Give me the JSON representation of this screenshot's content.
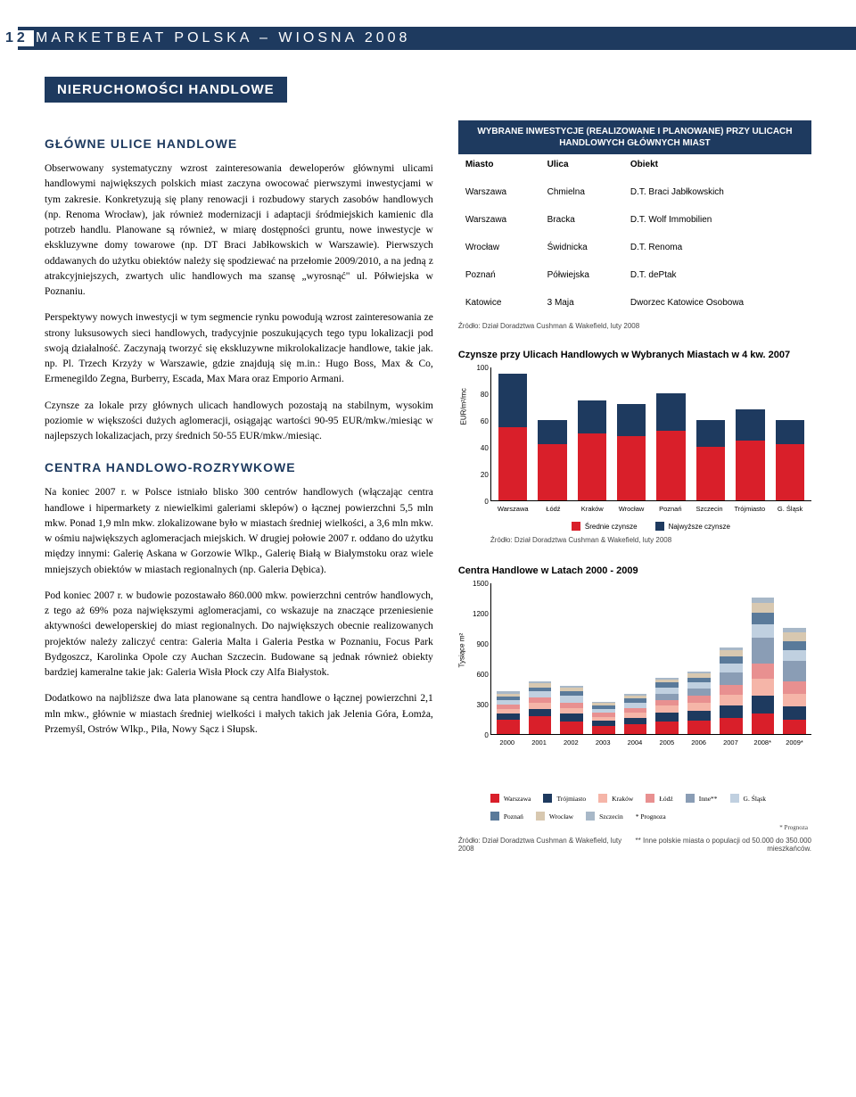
{
  "page_number": "12",
  "header": "MARKETBEAT POLSKA – WIOSNA 2008",
  "section_title": "NIERUCHOMOŚCI HANDLOWE",
  "subsec1": "GŁÓWNE ULICE HANDLOWE",
  "p1": "Obserwowany systematyczny wzrost zainteresowania deweloperów głównymi ulicami handlowymi największych polskich miast zaczyna owocować pierwszymi inwestycjami w tym zakresie. Konkretyzują się plany renowacji i rozbudowy starych zasobów handlowych (np. Renoma Wrocław), jak również modernizacji i adaptacji śródmiejskich kamienic dla potrzeb handlu. Planowane są również, w miarę dostępności gruntu, nowe inwestycje w ekskluzywne domy towarowe (np. DT Braci Jabłkowskich w Warszawie). Pierwszych oddawanych do użytku obiektów należy się spodziewać na przełomie 2009/2010, a na jedną z atrakcyjniejszych, zwartych ulic handlowych ma szansę „wyrosnąć\" ul. Półwiejska w Poznaniu.",
  "p2": "Perspektywy nowych inwestycji w tym segmencie rynku powodują wzrost zainteresowania ze strony luksusowych sieci handlowych, tradycyjnie poszukujących tego typu lokalizacji pod swoją działalność. Zaczynają tworzyć się ekskluzywne mikrolokalizacje handlowe, takie jak. np. Pl. Trzech Krzyży w Warszawie, gdzie znajdują się m.in.: Hugo Boss, Max & Co, Ermenegildo Zegna, Burberry, Escada, Max Mara oraz Emporio Armani.",
  "p3": "Czynsze za lokale przy głównych ulicach handlowych pozostają na stabilnym, wysokim poziomie w większości dużych aglomeracji, osiągając wartości 90-95 EUR/mkw./miesiąc w najlepszych lokalizacjach, przy średnich 50-55 EUR/mkw./miesiąc.",
  "subsec2": "CENTRA HANDLOWO-ROZRYWKOWE",
  "p4": "Na koniec 2007 r. w Polsce istniało blisko 300 centrów handlowych (włączając centra handlowe i hipermarkety z niewielkimi galeriami sklepów) o łącznej powierzchni 5,5 mln mkw. Ponad 1,9 mln mkw. zlokalizowane było w miastach średniej wielkości, a 3,6 mln mkw. w ośmiu największych aglomeracjach miejskich. W drugiej połowie 2007 r. oddano do użytku między innymi: Galerię Askana w Gorzowie Wlkp., Galerię Białą w Białymstoku oraz wiele mniejszych obiektów w miastach regionalnych (np. Galeria Dębica).",
  "p5": "Pod koniec 2007 r. w budowie pozostawało 860.000 mkw. powierzchni centrów handlowych, z tego aż 69% poza największymi aglomeracjami, co wskazuje na znaczące przeniesienie aktywności deweloperskiej do miast regionalnych. Do największych obecnie realizowanych projektów należy zaliczyć centra: Galeria Malta i Galeria Pestka w Poznaniu, Focus Park Bydgoszcz, Karolinka Opole czy Auchan Szczecin. Budowane są jednak również obiekty bardziej kameralne takie jak: Galeria Wisła Płock czy Alfa Białystok.",
  "p6": "Dodatkowo na najbliższe dwa lata planowane są centra handlowe o łącznej powierzchni 2,1 mln mkw., głównie w miastach średniej wielkości i małych takich jak Jelenia Góra, Łomża, Przemyśl, Ostrów Wlkp., Piła, Nowy Sącz i Słupsk.",
  "inv_table": {
    "header": "WYBRANE INWESTYCJE (REALIZOWANE I PLANOWANE) PRZY ULICACH HANDLOWYCH GŁÓWNYCH MIAST",
    "cols": [
      "Miasto",
      "Ulica",
      "Obiekt"
    ],
    "rows": [
      [
        "Warszawa",
        "Chmielna",
        "D.T. Braci Jabłkowskich"
      ],
      [
        "Warszawa",
        "Bracka",
        "D.T. Wolf Immobilien"
      ],
      [
        "Wrocław",
        "Świdnicka",
        "D.T. Renoma"
      ],
      [
        "Poznań",
        "Półwiejska",
        "D.T. dePtak"
      ],
      [
        "Katowice",
        "3 Maja",
        "Dworzec Katowice Osobowa"
      ]
    ]
  },
  "source_text": "Źródło: Dział Doradztwa Cushman & Wakefield, luty 2008",
  "chart1": {
    "title": "Czynsze przy Ulicach Handlowych w Wybranych Miastach w 4 kw. 2007",
    "ylabel": "EUR/m²/mc",
    "ymax": 100,
    "ytick_step": 20,
    "cities": [
      "Warszawa",
      "Łódź",
      "Kraków",
      "Wrocław",
      "Poznań",
      "Szczecin",
      "Trójmiasto",
      "G. Śląsk"
    ],
    "srednie": [
      55,
      42,
      50,
      48,
      52,
      40,
      45,
      42
    ],
    "najwyzsze": [
      95,
      60,
      75,
      72,
      80,
      60,
      68,
      60
    ],
    "color_srednie": "#d91f2a",
    "color_najwyzsze": "#1e3a5f",
    "legend": [
      "Średnie czynsze",
      "Najwyższe czynsze"
    ]
  },
  "chart2": {
    "title": "Centra Handlowe w Latach 2000 - 2009",
    "ylabel": "Tysiące m²",
    "ymax": 1500,
    "ytick_step": 300,
    "years": [
      "2000",
      "2001",
      "2002",
      "2003",
      "2004",
      "2005",
      "2006",
      "2007",
      "2008*",
      "2009*"
    ],
    "legend": [
      "Warszawa",
      "Trójmiasto",
      "Kraków",
      "Łódź",
      "Inne**",
      "G. Śląsk",
      "Poznań",
      "Wrocław",
      "Szczecin",
      "* Prognoza"
    ],
    "colors": {
      "Warszawa": "#d91f2a",
      "Trójmiasto": "#1e3a5f",
      "Kraków": "#f5b5a8",
      "Łódź": "#e89090",
      "Inne": "#8a9db5",
      "GSlask": "#c0d0e0",
      "Poznań": "#5a7a9a",
      "Wrocław": "#d8c8b0",
      "Szczecin": "#a8b8c8"
    },
    "stacks": [
      {
        "total": 420,
        "segs": [
          {
            "c": "#d91f2a",
            "v": 140
          },
          {
            "c": "#1e3a5f",
            "v": 60
          },
          {
            "c": "#f5b5a8",
            "v": 50
          },
          {
            "c": "#e89090",
            "v": 40
          },
          {
            "c": "#c0d0e0",
            "v": 50
          },
          {
            "c": "#5a7a9a",
            "v": 30
          },
          {
            "c": "#d8c8b0",
            "v": 30
          },
          {
            "c": "#a8b8c8",
            "v": 20
          }
        ]
      },
      {
        "total": 520,
        "segs": [
          {
            "c": "#d91f2a",
            "v": 180
          },
          {
            "c": "#1e3a5f",
            "v": 70
          },
          {
            "c": "#f5b5a8",
            "v": 60
          },
          {
            "c": "#e89090",
            "v": 50
          },
          {
            "c": "#c0d0e0",
            "v": 60
          },
          {
            "c": "#5a7a9a",
            "v": 40
          },
          {
            "c": "#d8c8b0",
            "v": 40
          },
          {
            "c": "#a8b8c8",
            "v": 20
          }
        ]
      },
      {
        "total": 480,
        "segs": [
          {
            "c": "#d91f2a",
            "v": 120
          },
          {
            "c": "#1e3a5f",
            "v": 80
          },
          {
            "c": "#f5b5a8",
            "v": 60
          },
          {
            "c": "#e89090",
            "v": 50
          },
          {
            "c": "#c0d0e0",
            "v": 70
          },
          {
            "c": "#5a7a9a",
            "v": 40
          },
          {
            "c": "#d8c8b0",
            "v": 40
          },
          {
            "c": "#a8b8c8",
            "v": 20
          }
        ]
      },
      {
        "total": 320,
        "segs": [
          {
            "c": "#d91f2a",
            "v": 80
          },
          {
            "c": "#1e3a5f",
            "v": 50
          },
          {
            "c": "#f5b5a8",
            "v": 40
          },
          {
            "c": "#e89090",
            "v": 40
          },
          {
            "c": "#c0d0e0",
            "v": 40
          },
          {
            "c": "#5a7a9a",
            "v": 30
          },
          {
            "c": "#d8c8b0",
            "v": 25
          },
          {
            "c": "#a8b8c8",
            "v": 15
          }
        ]
      },
      {
        "total": 400,
        "segs": [
          {
            "c": "#d91f2a",
            "v": 100
          },
          {
            "c": "#1e3a5f",
            "v": 60
          },
          {
            "c": "#f5b5a8",
            "v": 50
          },
          {
            "c": "#e89090",
            "v": 50
          },
          {
            "c": "#c0d0e0",
            "v": 50
          },
          {
            "c": "#5a7a9a",
            "v": 40
          },
          {
            "c": "#d8c8b0",
            "v": 30
          },
          {
            "c": "#a8b8c8",
            "v": 20
          }
        ]
      },
      {
        "total": 560,
        "segs": [
          {
            "c": "#d91f2a",
            "v": 120
          },
          {
            "c": "#1e3a5f",
            "v": 90
          },
          {
            "c": "#f5b5a8",
            "v": 70
          },
          {
            "c": "#e89090",
            "v": 60
          },
          {
            "c": "#8a9db5",
            "v": 60
          },
          {
            "c": "#c0d0e0",
            "v": 60
          },
          {
            "c": "#5a7a9a",
            "v": 50
          },
          {
            "c": "#d8c8b0",
            "v": 30
          },
          {
            "c": "#a8b8c8",
            "v": 20
          }
        ]
      },
      {
        "total": 620,
        "segs": [
          {
            "c": "#d91f2a",
            "v": 130
          },
          {
            "c": "#1e3a5f",
            "v": 100
          },
          {
            "c": "#f5b5a8",
            "v": 80
          },
          {
            "c": "#e89090",
            "v": 70
          },
          {
            "c": "#8a9db5",
            "v": 70
          },
          {
            "c": "#c0d0e0",
            "v": 60
          },
          {
            "c": "#5a7a9a",
            "v": 50
          },
          {
            "c": "#d8c8b0",
            "v": 40
          },
          {
            "c": "#a8b8c8",
            "v": 20
          }
        ]
      },
      {
        "total": 860,
        "segs": [
          {
            "c": "#d91f2a",
            "v": 160
          },
          {
            "c": "#1e3a5f",
            "v": 120
          },
          {
            "c": "#f5b5a8",
            "v": 110
          },
          {
            "c": "#e89090",
            "v": 100
          },
          {
            "c": "#8a9db5",
            "v": 120
          },
          {
            "c": "#c0d0e0",
            "v": 90
          },
          {
            "c": "#5a7a9a",
            "v": 70
          },
          {
            "c": "#d8c8b0",
            "v": 60
          },
          {
            "c": "#a8b8c8",
            "v": 30
          }
        ]
      },
      {
        "total": 1350,
        "segs": [
          {
            "c": "#d91f2a",
            "v": 200
          },
          {
            "c": "#1e3a5f",
            "v": 180
          },
          {
            "c": "#f5b5a8",
            "v": 170
          },
          {
            "c": "#e89090",
            "v": 150
          },
          {
            "c": "#8a9db5",
            "v": 250
          },
          {
            "c": "#c0d0e0",
            "v": 140
          },
          {
            "c": "#5a7a9a",
            "v": 110
          },
          {
            "c": "#d8c8b0",
            "v": 100
          },
          {
            "c": "#a8b8c8",
            "v": 50
          }
        ]
      },
      {
        "total": 1050,
        "segs": [
          {
            "c": "#d91f2a",
            "v": 140
          },
          {
            "c": "#1e3a5f",
            "v": 130
          },
          {
            "c": "#f5b5a8",
            "v": 130
          },
          {
            "c": "#e89090",
            "v": 120
          },
          {
            "c": "#8a9db5",
            "v": 200
          },
          {
            "c": "#c0d0e0",
            "v": 110
          },
          {
            "c": "#5a7a9a",
            "v": 90
          },
          {
            "c": "#d8c8b0",
            "v": 90
          },
          {
            "c": "#a8b8c8",
            "v": 40
          }
        ]
      }
    ],
    "footnote1": "* Prognoza",
    "footnote2": "** Inne polskie miasta o populacji od 50.000 do 350.000 mieszkańców."
  }
}
